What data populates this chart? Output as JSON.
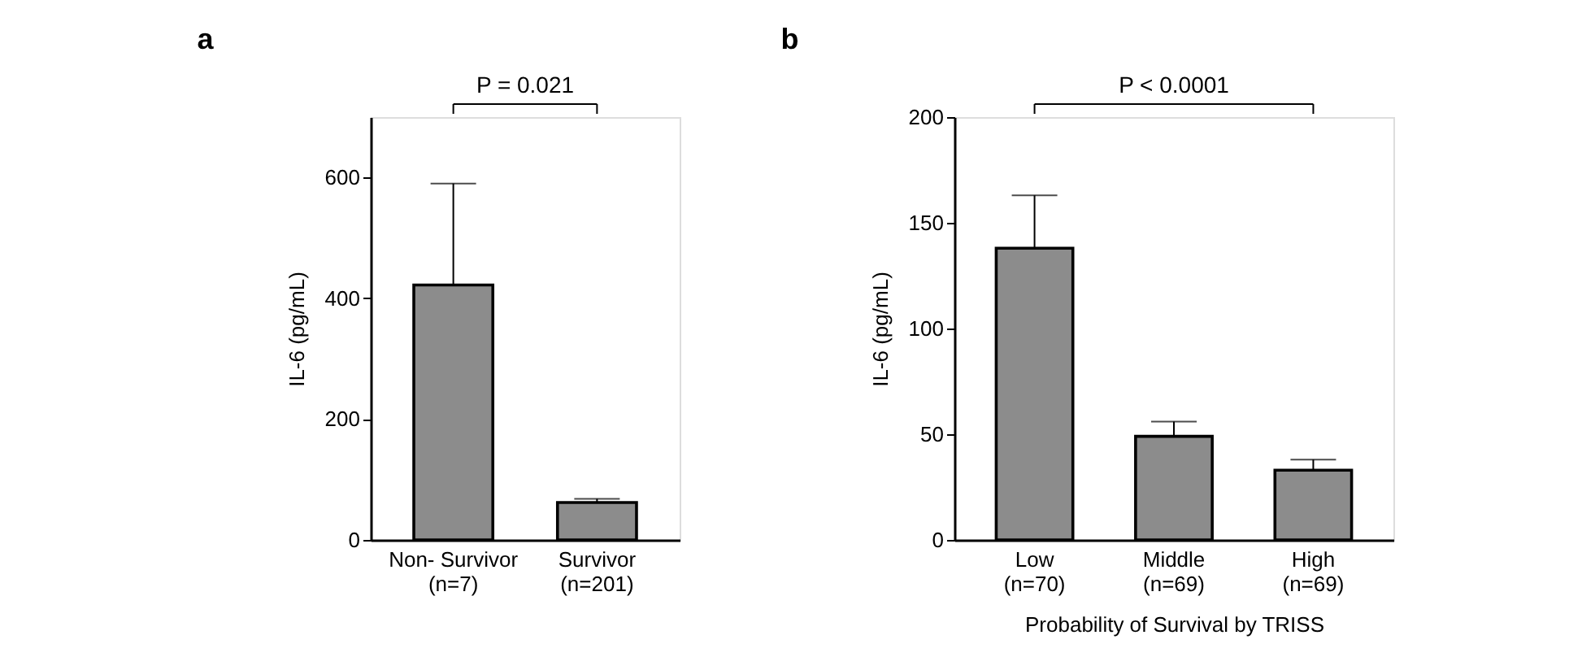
{
  "chart_data": [
    {
      "type": "bar",
      "title": "a",
      "ylabel": "IL-6 (pg/mL)",
      "categories": [
        "Non- Survivor\n(n=7)",
        "Survivor\n(n=201)"
      ],
      "series": [
        {
          "color": "#8c8c8c",
          "values": [
            422,
            62
          ],
          "errors": [
            168,
            6
          ]
        }
      ],
      "ylim": [
        0,
        700
      ],
      "yticks": [
        0,
        200,
        400,
        600
      ],
      "grid": false,
      "annotations": [
        "P = 0.021"
      ]
    },
    {
      "type": "bar",
      "title": "b",
      "ylabel": "IL-6 (pg/mL)",
      "xlabel": "Probability of Survival by TRISS",
      "categories": [
        "Low\n(n=70)",
        "Middle\n(n=69)",
        "High\n(n=69)"
      ],
      "series": [
        {
          "color": "#8c8c8c",
          "values": [
            138,
            49,
            33
          ],
          "errors": [
            25,
            7,
            5
          ]
        }
      ],
      "ylim": [
        0,
        200
      ],
      "yticks": [
        0,
        50,
        100,
        150,
        200
      ],
      "grid": false,
      "annotations": [
        "P < 0.0001"
      ]
    }
  ]
}
